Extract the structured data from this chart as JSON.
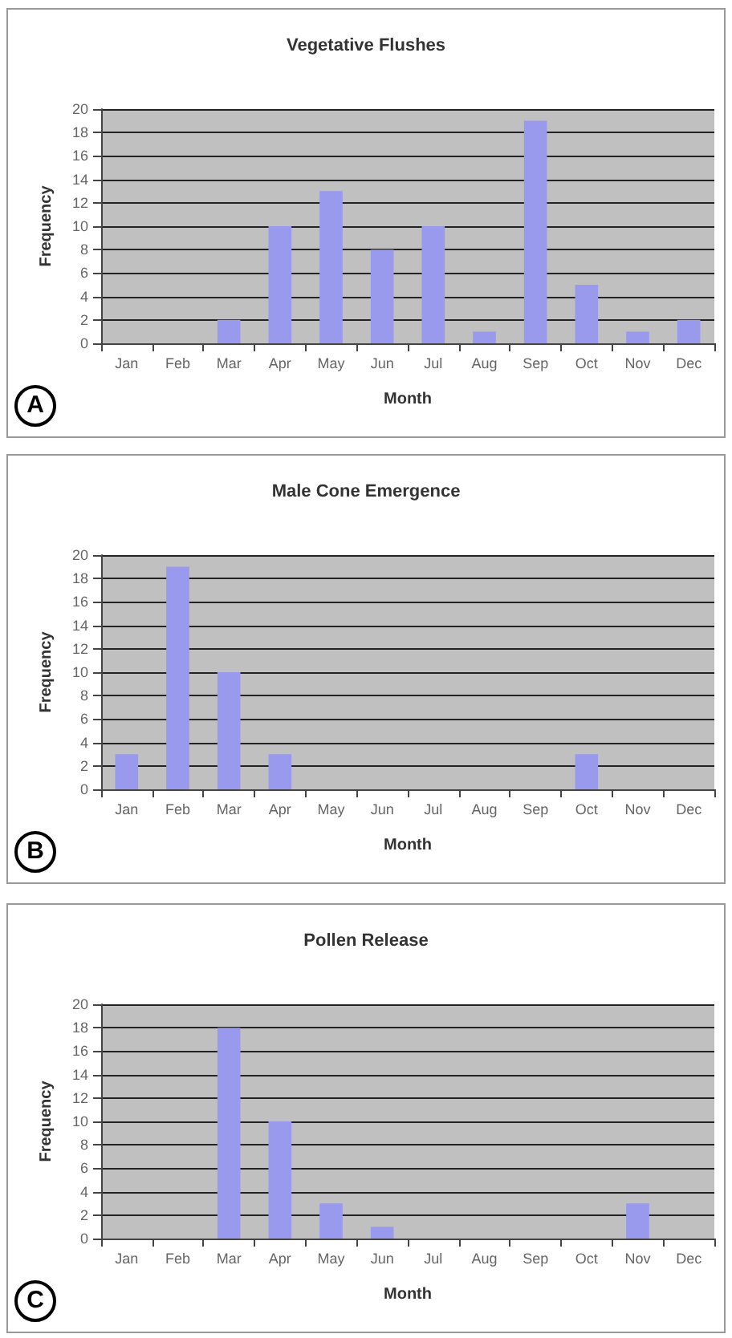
{
  "chart_data": [
    {
      "type": "bar",
      "title": "Vegetative Flushes",
      "xlabel": "Month",
      "ylabel": "Frequency",
      "categories": [
        "Jan",
        "Feb",
        "Mar",
        "Apr",
        "May",
        "Jun",
        "Jul",
        "Aug",
        "Sep",
        "Oct",
        "Nov",
        "Dec"
      ],
      "values": [
        0,
        0,
        2,
        10,
        13,
        8,
        10,
        1,
        19,
        5,
        1,
        2
      ],
      "color": "#9999ee",
      "ylim": [
        0,
        20
      ],
      "yticks": [
        0,
        2,
        4,
        6,
        8,
        10,
        12,
        14,
        16,
        18,
        20
      ],
      "grid": "y",
      "annotations": [
        "A"
      ]
    },
    {
      "type": "bar",
      "title": "Male Cone Emergence",
      "xlabel": "Month",
      "ylabel": "Frequency",
      "categories": [
        "Jan",
        "Feb",
        "Mar",
        "Apr",
        "May",
        "Jun",
        "Jul",
        "Aug",
        "Sep",
        "Oct",
        "Nov",
        "Dec"
      ],
      "values": [
        3,
        19,
        10,
        3,
        0,
        0,
        0,
        0,
        0,
        3,
        0,
        0
      ],
      "color": "#9999ee",
      "ylim": [
        0,
        20
      ],
      "yticks": [
        0,
        2,
        4,
        6,
        8,
        10,
        12,
        14,
        16,
        18,
        20
      ],
      "grid": "y",
      "annotations": [
        "B"
      ]
    },
    {
      "type": "bar",
      "title": "Pollen Release",
      "xlabel": "Month",
      "ylabel": "Frequency",
      "categories": [
        "Jan",
        "Feb",
        "Mar",
        "Apr",
        "May",
        "Jun",
        "Jul",
        "Aug",
        "Sep",
        "Oct",
        "Nov",
        "Dec"
      ],
      "values": [
        0,
        0,
        18,
        10,
        3,
        1,
        0,
        0,
        0,
        0,
        3,
        0
      ],
      "color": "#9999ee",
      "ylim": [
        0,
        20
      ],
      "yticks": [
        0,
        2,
        4,
        6,
        8,
        10,
        12,
        14,
        16,
        18,
        20
      ],
      "grid": "y",
      "annotations": [
        "C"
      ]
    }
  ]
}
